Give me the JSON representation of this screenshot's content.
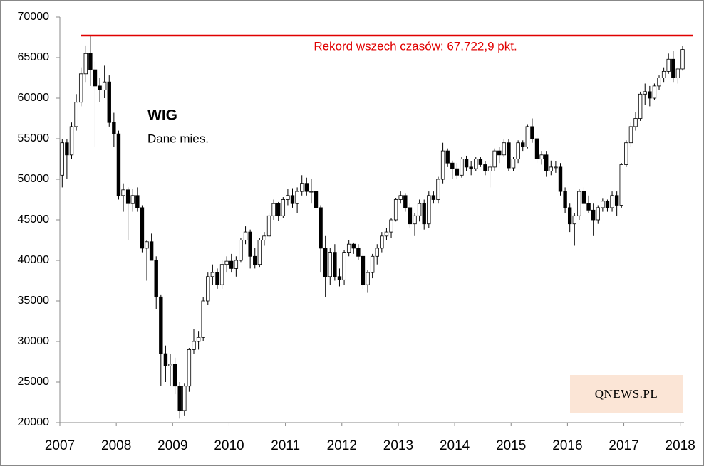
{
  "chart_data": {
    "type": "candlestick",
    "title": "WIG",
    "subtitle": "Dane mies.",
    "logo": "QNEWS.PL",
    "categories": [
      "2007",
      null,
      null,
      null,
      null,
      null,
      null,
      null,
      null,
      null,
      null,
      null,
      "2008",
      null,
      null,
      null,
      null,
      null,
      null,
      null,
      null,
      null,
      null,
      null,
      "2009",
      null,
      null,
      null,
      null,
      null,
      null,
      null,
      null,
      null,
      null,
      null,
      "2010",
      null,
      null,
      null,
      null,
      null,
      null,
      null,
      null,
      null,
      null,
      null,
      "2011",
      null,
      null,
      null,
      null,
      null,
      null,
      null,
      null,
      null,
      null,
      null,
      "2012",
      null,
      null,
      null,
      null,
      null,
      null,
      null,
      null,
      null,
      null,
      null,
      "2013",
      null,
      null,
      null,
      null,
      null,
      null,
      null,
      null,
      null,
      null,
      null,
      "2014",
      null,
      null,
      null,
      null,
      null,
      null,
      null,
      null,
      null,
      null,
      null,
      "2015",
      null,
      null,
      null,
      null,
      null,
      null,
      null,
      null,
      null,
      null,
      null,
      "2016",
      null,
      null,
      null,
      null,
      null,
      null,
      null,
      null,
      null,
      null,
      null,
      "2017",
      null,
      null,
      null,
      null,
      null,
      null,
      null,
      null,
      null,
      null,
      null,
      "2018"
    ],
    "open": [
      50500,
      54500,
      53000,
      56500,
      59500,
      63000,
      65500,
      63500,
      61500,
      61000,
      62000,
      57000,
      55600,
      48000,
      48700,
      47000,
      48000,
      46500,
      41500,
      42300,
      40000,
      35500,
      28500,
      27000,
      27200,
      24500,
      21500,
      24500,
      29000,
      30000,
      30500,
      35000,
      38000,
      38500,
      37000,
      39500,
      39900,
      39000,
      40000,
      42500,
      43500,
      40500,
      39500,
      42500,
      43000,
      45500,
      47000,
      45500,
      47500,
      48000,
      47000,
      48500,
      49500,
      48500,
      48500,
      46500,
      41500,
      38000,
      41000,
      38000,
      37600,
      41000,
      42000,
      41500,
      40500,
      37000,
      38500,
      40500,
      41500,
      43000,
      43500,
      45000,
      47500,
      48000,
      46500,
      44500,
      45500,
      47000,
      44500,
      48000,
      47500,
      50000,
      53500,
      52000,
      51300,
      50500,
      52500,
      51500,
      51300,
      52500,
      51800,
      51000,
      51500,
      53500,
      53000,
      54500,
      51400,
      52500,
      54500,
      54000,
      56500,
      55000,
      52500,
      53000,
      51000,
      51500,
      51500,
      48500,
      46500,
      44500,
      45500,
      48500,
      47000,
      46200,
      45000,
      46500,
      47300,
      46500,
      48000,
      46800,
      51800,
      54500,
      56500,
      57500,
      60500,
      60800,
      60000,
      61500,
      62500,
      63300,
      64800,
      62500,
      63600
    ],
    "high": [
      55000,
      55000,
      57000,
      60500,
      63800,
      66500,
      67700,
      64500,
      62500,
      64000,
      62800,
      58200,
      56000,
      49500,
      49000,
      48800,
      49000,
      46800,
      42500,
      43300,
      40500,
      35800,
      29500,
      28500,
      28000,
      25000,
      24800,
      29200,
      31500,
      31300,
      35500,
      38500,
      39500,
      39000,
      40000,
      40500,
      40800,
      40500,
      42800,
      44200,
      43800,
      41500,
      42800,
      43500,
      45800,
      47500,
      47200,
      47800,
      48800,
      48900,
      49000,
      50500,
      50200,
      50000,
      49500,
      46800,
      43000,
      41500,
      42000,
      39000,
      41300,
      42500,
      42200,
      42000,
      40900,
      38800,
      40800,
      42000,
      43500,
      44000,
      45200,
      47700,
      48500,
      48300,
      47000,
      45800,
      47500,
      47500,
      48500,
      48500,
      50300,
      54500,
      53800,
      52300,
      52000,
      52800,
      52900,
      52200,
      52800,
      52800,
      52200,
      51900,
      53800,
      54000,
      55000,
      55000,
      52800,
      54800,
      54800,
      56800,
      57500,
      55500,
      53500,
      53500,
      52300,
      52200,
      52000,
      49000,
      47000,
      45800,
      48800,
      49000,
      48000,
      47000,
      46800,
      47600,
      47500,
      48500,
      48500,
      52000,
      54800,
      57000,
      58300,
      60800,
      61800,
      61500,
      61800,
      62800,
      63800,
      65500,
      65800,
      63800,
      66400
    ],
    "low": [
      49000,
      50000,
      52500,
      56000,
      59000,
      62000,
      61500,
      54000,
      59500,
      60000,
      56500,
      54000,
      47500,
      46000,
      42500,
      46000,
      46000,
      41000,
      37500,
      40000,
      34000,
      24500,
      25000,
      24500,
      23500,
      20500,
      20800,
      23800,
      28500,
      29000,
      30000,
      34500,
      37000,
      36500,
      36500,
      38500,
      38500,
      38000,
      39800,
      42000,
      39000,
      39000,
      39200,
      41800,
      42800,
      45000,
      44900,
      45200,
      46800,
      46500,
      45800,
      48000,
      48000,
      47000,
      46000,
      38500,
      35500,
      37000,
      37500,
      36800,
      37000,
      40500,
      40800,
      40000,
      36500,
      36000,
      37800,
      39500,
      41000,
      42500,
      42800,
      44800,
      47000,
      46000,
      44000,
      43000,
      44800,
      43800,
      44000,
      47000,
      47000,
      49500,
      51500,
      50000,
      50000,
      50200,
      51000,
      50500,
      51000,
      51500,
      50500,
      49000,
      51000,
      52000,
      52800,
      51000,
      51000,
      52000,
      53500,
      53800,
      54500,
      52000,
      51800,
      50300,
      50500,
      50800,
      48000,
      45800,
      43500,
      41800,
      45000,
      46500,
      45800,
      43000,
      44500,
      46000,
      46000,
      46000,
      45500,
      46500,
      51500,
      54000,
      56000,
      57200,
      59200,
      59000,
      59800,
      61000,
      62000,
      63000,
      62000,
      61800,
      63400
    ],
    "close": [
      54500,
      53000,
      56500,
      59500,
      63000,
      65500,
      63500,
      61500,
      61000,
      62000,
      57000,
      55600,
      48000,
      48700,
      47000,
      48000,
      46500,
      41500,
      42300,
      40000,
      35500,
      28500,
      27000,
      27200,
      24500,
      21500,
      24500,
      29000,
      30000,
      30500,
      35000,
      38000,
      38500,
      37000,
      39500,
      39900,
      39000,
      40000,
      42500,
      43500,
      40500,
      39500,
      42500,
      43000,
      45500,
      47000,
      45500,
      47500,
      48000,
      47000,
      48500,
      49500,
      48500,
      48500,
      46500,
      41500,
      38000,
      41000,
      38000,
      37600,
      41000,
      42000,
      41500,
      40500,
      37000,
      38500,
      40500,
      41500,
      43000,
      43500,
      45000,
      47500,
      48000,
      46500,
      44500,
      45500,
      47000,
      44500,
      48000,
      47500,
      50000,
      53500,
      52000,
      51300,
      50500,
      52500,
      51500,
      51300,
      52500,
      51800,
      51000,
      51500,
      53500,
      53000,
      54500,
      51400,
      52500,
      54500,
      54000,
      56500,
      55000,
      52500,
      53000,
      51000,
      51500,
      51500,
      48500,
      46500,
      44500,
      45500,
      48500,
      47000,
      46200,
      45000,
      46500,
      47300,
      46500,
      48000,
      46800,
      51800,
      54500,
      56500,
      57500,
      60500,
      60800,
      60000,
      61500,
      62500,
      63300,
      64800,
      62500,
      63600,
      66000
    ],
    "ylim": [
      20000,
      70000
    ],
    "yticks": [
      20000,
      25000,
      30000,
      35000,
      40000,
      45000,
      50000,
      55000,
      60000,
      65000,
      70000
    ],
    "reference_line": {
      "value": 67722.9,
      "label": "Rekord wszech czasów: 67.722,9 pkt.",
      "color": "#e00000"
    },
    "up_color": "#ffffff",
    "down_color": "#000000"
  }
}
